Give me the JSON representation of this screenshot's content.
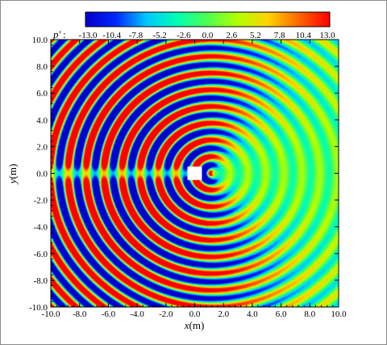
{
  "chart_data": {
    "type": "heatmap",
    "colorbar": {
      "label": "p′",
      "tick_labels": [
        "-13.0",
        "-10.4",
        "-7.8",
        "-5.2",
        "-2.6",
        "0.0",
        "2.6",
        "5.2",
        "7.8",
        "10.4",
        "13.0"
      ],
      "range": [
        -13.0,
        13.0
      ],
      "colors": [
        "#0000c8",
        "#0028ff",
        "#00c8ff",
        "#00ffb4",
        "#50ff50",
        "#b4ff00",
        "#ffd200",
        "#ff6400",
        "#ff0000"
      ]
    },
    "x": {
      "label_var": "x",
      "label_unit": "(m)",
      "range": [
        -10.0,
        10.0
      ],
      "tick_labels": [
        "-10.0",
        "-8.0",
        "-6.0",
        "-4.0",
        "-2.0",
        "0.0",
        "2.0",
        "4.0",
        "6.0",
        "8.0",
        "10.0"
      ],
      "tick_values": [
        -10,
        -8,
        -6,
        -4,
        -2,
        0,
        2,
        4,
        6,
        8,
        10
      ]
    },
    "y": {
      "label_var": "y",
      "label_unit": "(m)",
      "range": [
        -10.0,
        10.0
      ],
      "tick_labels": [
        "-10.0",
        "-8.0",
        "-6.0",
        "-4.0",
        "-2.0",
        "0.0",
        "2.0",
        "4.0",
        "6.0",
        "8.0",
        "10.0"
      ],
      "tick_values": [
        -10,
        -8,
        -6,
        -4,
        -2,
        0,
        2,
        4,
        6,
        8,
        10
      ]
    },
    "obstacle": {
      "shape": "square",
      "center": [
        0.0,
        0.0
      ],
      "side": 1.0,
      "color": "#ffffff"
    },
    "source": {
      "x": 1.2,
      "y": 0.0
    },
    "field": {
      "description_free": true,
      "wavelength_m": 1.25,
      "max_amplitude": 13.0
    }
  }
}
